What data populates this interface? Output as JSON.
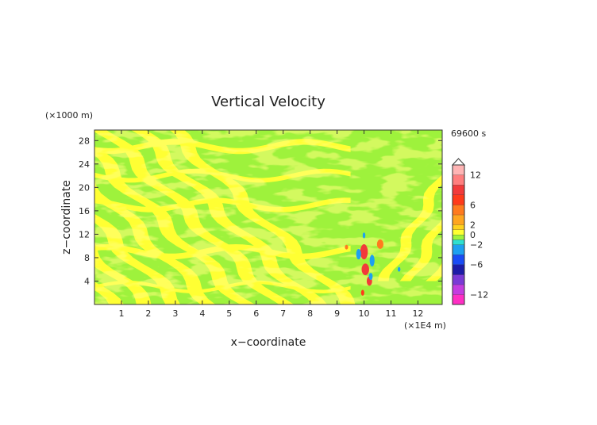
{
  "chart_data": {
    "type": "heatmap",
    "title": "Vertical Velocity",
    "time_label": "69600 s",
    "xlabel": "x−coordinate",
    "ylabel": "z−coordinate",
    "x_unit": "(×1E4 m)",
    "y_unit": "(×1000 m)",
    "xlim": [
      0,
      12.9
    ],
    "ylim": [
      0,
      29.8
    ],
    "x_ticks": [
      1,
      2,
      3,
      4,
      5,
      6,
      7,
      8,
      9,
      10,
      11,
      12
    ],
    "x_tick_labels": [
      "1",
      "2",
      "3",
      "4",
      "5",
      "6",
      "7",
      "8",
      "9",
      "10",
      "11",
      "12"
    ],
    "y_ticks": [
      4,
      8,
      12,
      16,
      20,
      24,
      28
    ],
    "y_tick_labels": [
      "4",
      "8",
      "12",
      "16",
      "20",
      "24",
      "28"
    ],
    "background_level_color": "#9ef23c",
    "colorbar": {
      "levels": [
        {
          "lo": -14,
          "hi": -12,
          "color": "#ff2ec4"
        },
        {
          "lo": -12,
          "hi": -10,
          "color": "#c43ce0"
        },
        {
          "lo": -10,
          "hi": -8,
          "color": "#7a3ad6"
        },
        {
          "lo": -8,
          "hi": -6,
          "color": "#1c1ca8"
        },
        {
          "lo": -6,
          "hi": -4,
          "color": "#1a4cf5"
        },
        {
          "lo": -4,
          "hi": -2,
          "color": "#1ea0f0"
        },
        {
          "lo": -2,
          "hi": -1,
          "color": "#2ee0d0"
        },
        {
          "lo": -1,
          "hi": 0,
          "color": "#9ef23c"
        },
        {
          "lo": 0,
          "hi": 1,
          "color": "#ffff33"
        },
        {
          "lo": 1,
          "hi": 2,
          "color": "#ffd21e"
        },
        {
          "lo": 2,
          "hi": 4,
          "color": "#ffa520"
        },
        {
          "lo": 4,
          "hi": 6,
          "color": "#ff7a1e"
        },
        {
          "lo": 6,
          "hi": 8,
          "color": "#ff3a1a"
        },
        {
          "lo": 8,
          "hi": 10,
          "color": "#f23a3a"
        },
        {
          "lo": 10,
          "hi": 12,
          "color": "#ff7e7e"
        },
        {
          "lo": 12,
          "hi": 14,
          "color": "#ffb4b4"
        }
      ],
      "tick_values": [
        12,
        6,
        2,
        0,
        -2,
        -6,
        -12
      ],
      "tick_labels": [
        "12",
        "6",
        "2",
        "0",
        "−2",
        "−6",
        "−12"
      ],
      "overflow_triangle": "top"
    },
    "features": {
      "positive_level_band_color": "#ffff33",
      "negative_level_band_color": "#9ef23c",
      "mountain_center_x": 10.0,
      "strong_updraft_color": "#f23a3a",
      "strong_downdraft_color": "#1ea0f0"
    }
  }
}
